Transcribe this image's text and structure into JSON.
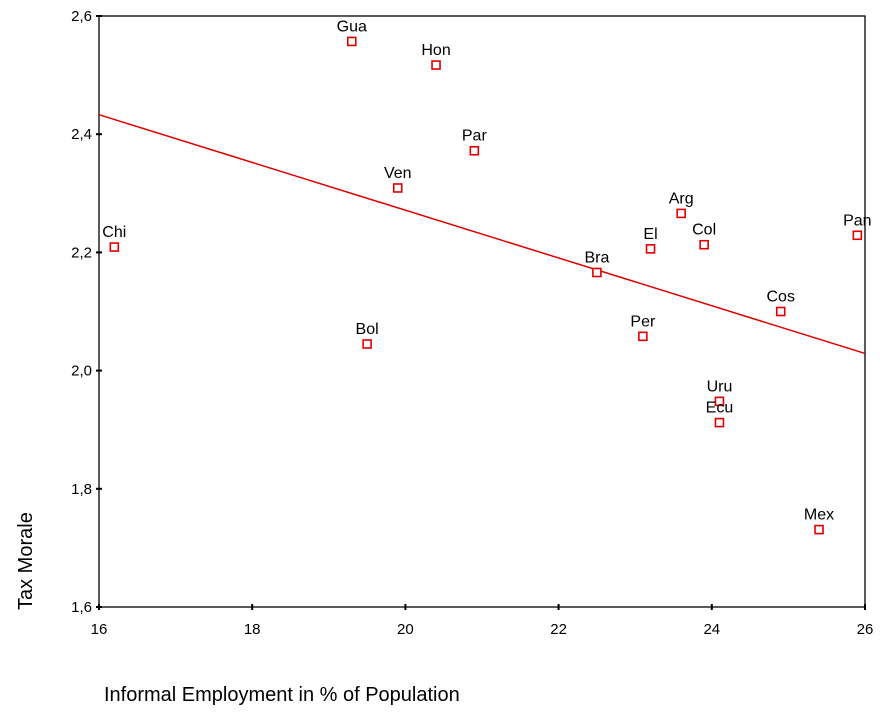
{
  "chart_data": {
    "type": "scatter",
    "xlabel": "Informal Employment in % of Population",
    "ylabel": "Tax Morale",
    "xlim": [
      16,
      26
    ],
    "ylim": [
      1.6,
      2.6
    ],
    "x_ticks": [
      16,
      18,
      20,
      22,
      24,
      26
    ],
    "y_ticks": [
      1.6,
      1.8,
      2.0,
      2.2,
      2.4,
      2.6
    ],
    "x_tick_labels": [
      "16",
      "18",
      "20",
      "22",
      "24",
      "26"
    ],
    "y_tick_labels": [
      "1,6",
      "1,8",
      "2,0",
      "2,2",
      "2,4",
      "2,6"
    ],
    "grid": false,
    "marker_color": "#e00000",
    "line_color": "#e00000",
    "points": [
      {
        "label": "Gua",
        "x": 19.3,
        "y": 2.557
      },
      {
        "label": "Hon",
        "x": 20.4,
        "y": 2.517
      },
      {
        "label": "Par",
        "x": 20.9,
        "y": 2.372
      },
      {
        "label": "Ven",
        "x": 19.9,
        "y": 2.309
      },
      {
        "label": "Chi",
        "x": 16.2,
        "y": 2.209
      },
      {
        "label": "Arg",
        "x": 23.6,
        "y": 2.266
      },
      {
        "label": "El",
        "x": 23.2,
        "y": 2.206
      },
      {
        "label": "Col",
        "x": 23.9,
        "y": 2.213
      },
      {
        "label": "Pan",
        "x": 25.9,
        "y": 2.229
      },
      {
        "label": "Bra",
        "x": 22.5,
        "y": 2.166
      },
      {
        "label": "Cos",
        "x": 24.9,
        "y": 2.1
      },
      {
        "label": "Per",
        "x": 23.1,
        "y": 2.058
      },
      {
        "label": "Bol",
        "x": 19.5,
        "y": 2.045
      },
      {
        "label": "Uru",
        "x": 24.1,
        "y": 1.948
      },
      {
        "label": "Ecu",
        "x": 24.1,
        "y": 1.912
      },
      {
        "label": "Mex",
        "x": 25.4,
        "y": 1.731
      }
    ],
    "fit_line": {
      "x": [
        16,
        26
      ],
      "y": [
        2.433,
        2.029
      ]
    }
  }
}
